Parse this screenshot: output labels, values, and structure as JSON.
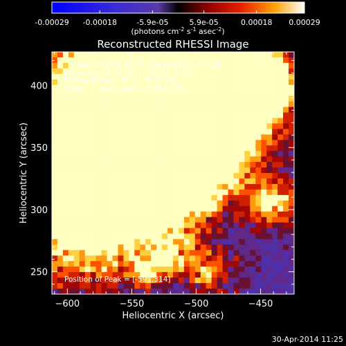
{
  "chart_data": {
    "type": "heatmap",
    "title": "Reconstructed RHESSI Image",
    "xlabel": "Heliocentric X (arcsec)",
    "ylabel": "Heliocentric Y (arcsec)",
    "xlim": [
      -612,
      -424
    ],
    "ylim": [
      232,
      427
    ],
    "x_ticks": [
      -600,
      -550,
      -500,
      -450
    ],
    "y_ticks": [
      250,
      300,
      350,
      400
    ],
    "colorbar": {
      "label_line1": "(photons cm",
      "label_exp1": "-2",
      "label_mid": " s",
      "label_exp2": "-1",
      "label_mid2": " asec",
      "label_exp3": "-2",
      "label_end": ")",
      "range": [
        -0.00029,
        0.00029
      ],
      "tick_values": [
        -0.00029,
        -0.00018,
        -5.9e-05,
        5.9e-05,
        0.00018,
        0.00029
      ],
      "tick_labels": [
        "-0.00029",
        "-0.00018",
        "-5.9e-05",
        "5.9e-05",
        "0.00018",
        "0.00029"
      ]
    },
    "annotations": {
      "time_range": "2-Apr-2012 09:45:52.000 to 09:50:46.000",
      "detectors": "Detectors: 3F 5F 6F 7F 8F 9F, Att 0",
      "energy_range": "Energy Range: 12.0 - 25.0 keV",
      "clean_counts": "Clean      Total counts: 5.81E+03",
      "peak": "Position of Peak = [-591,314]"
    },
    "peak_position": [
      -591,
      314
    ],
    "total_counts": 5810,
    "energy_keV": [
      12.0,
      25.0
    ],
    "grid": false
  },
  "timestamp": "30-Apr-2014 11:25"
}
